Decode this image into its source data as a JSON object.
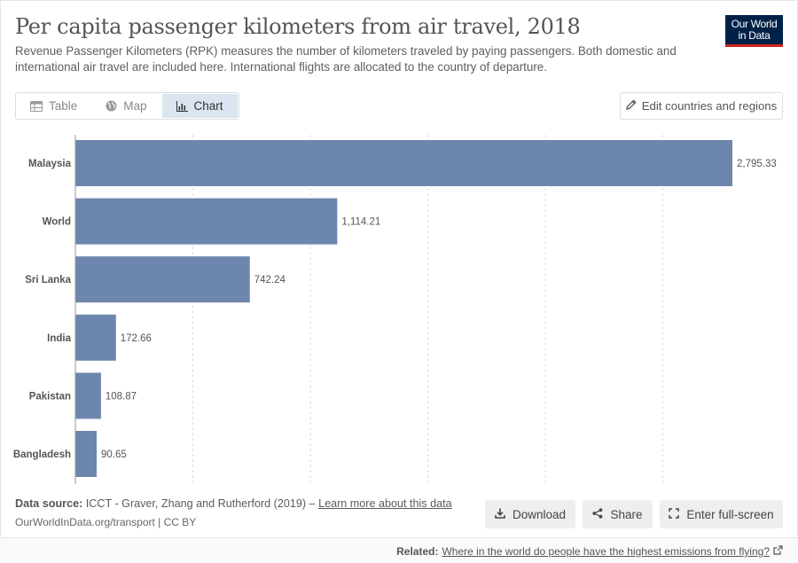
{
  "header": {
    "title": "Per capita passenger kilometers from air travel, 2018",
    "subtitle": "Revenue Passenger Kilometers (RPK) measures the number of kilometers traveled by paying passengers. Both domestic and international air travel are included here. International flights are allocated to the country of departure.",
    "logo_line1": "Our World",
    "logo_line2": "in Data"
  },
  "tabs": [
    {
      "label": "Table",
      "icon": "table-icon"
    },
    {
      "label": "Map",
      "icon": "globe-icon"
    },
    {
      "label": "Chart",
      "icon": "chart-icon",
      "active": true
    }
  ],
  "edit_button": {
    "label": "Edit countries and regions",
    "icon": "pencil-icon"
  },
  "chart_data": {
    "type": "bar",
    "orientation": "horizontal",
    "categories": [
      "Malaysia",
      "World",
      "Sri Lanka",
      "India",
      "Pakistan",
      "Bangladesh"
    ],
    "values": [
      2795.33,
      1114.21,
      742.24,
      172.66,
      108.87,
      90.65
    ],
    "value_labels": [
      "2,795.33",
      "1,114.21",
      "742.24",
      "172.66",
      "108.87",
      "90.65"
    ],
    "xlim": [
      0,
      2795.33
    ],
    "grid": true,
    "bar_color": "#6d86ae"
  },
  "footer": {
    "source_label": "Data source:",
    "source_text": "ICCT - Graver, Zhang and Rutherford (2019) –",
    "source_link": "Learn more about this data",
    "url": "OurWorldInData.org/transport | CC BY",
    "download_label": "Download",
    "share_label": "Share",
    "fullscreen_label": "Enter full-screen"
  },
  "related": {
    "label": "Related:",
    "link": "Where in the world do people have the highest emissions from flying?"
  }
}
